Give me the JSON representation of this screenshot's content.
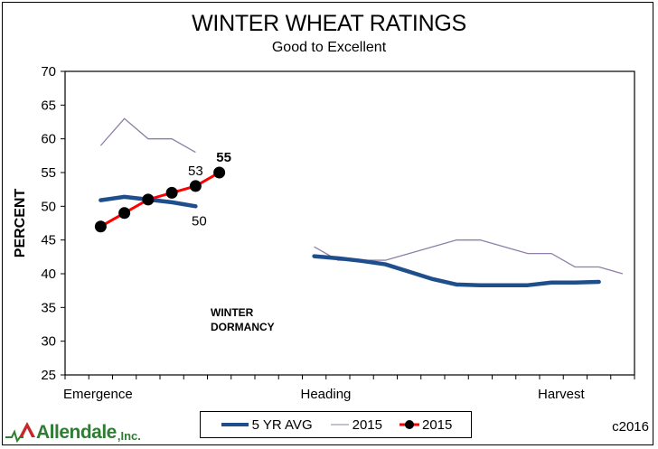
{
  "chart_data": {
    "type": "line",
    "title": "WINTER WHEAT RATINGS",
    "subtitle": "Good to Excellent",
    "xlabel": "",
    "ylabel": "PERCENT",
    "ylim": [
      25,
      70
    ],
    "yticks": [
      25,
      30,
      35,
      40,
      45,
      50,
      55,
      60,
      65,
      70
    ],
    "x_category_count": 24,
    "x_tick_labels": [
      {
        "label": "Emergence",
        "index": 0
      },
      {
        "label": "Heading",
        "index": 10
      },
      {
        "label": "Harvest",
        "index": 20
      }
    ],
    "grid": false,
    "legend_position": "bottom",
    "series": [
      {
        "name": "5 YR AVG",
        "color": "#1f4e8c",
        "style": "thick",
        "x": [
          1,
          2,
          3,
          4,
          5,
          10,
          11,
          12,
          13,
          14,
          15,
          16,
          17,
          18,
          19,
          20,
          21,
          22
        ],
        "values": [
          50.9,
          51.4,
          51.0,
          50.6,
          50.0,
          42.6,
          42.3,
          41.9,
          41.4,
          40.3,
          39.2,
          38.4,
          38.3,
          38.3,
          38.3,
          38.7,
          38.7,
          38.8
        ]
      },
      {
        "name": "2015",
        "color": "#8e7fa8",
        "style": "thin",
        "x": [
          1,
          2,
          3,
          4,
          5,
          10,
          11,
          12,
          13,
          14,
          15,
          16,
          17,
          18,
          19,
          20,
          21,
          22,
          23
        ],
        "values": [
          59,
          63,
          60,
          60,
          58,
          44,
          42,
          42,
          42,
          43,
          44,
          45,
          45,
          44,
          43,
          43,
          41,
          41,
          40
        ]
      },
      {
        "name": "2015",
        "color": "#ff0000",
        "marker_color": "#000000",
        "style": "markers",
        "x": [
          1,
          2,
          3,
          4,
          5,
          6
        ],
        "values": [
          47,
          49,
          51,
          52,
          53,
          55
        ]
      }
    ],
    "annotations": [
      {
        "text": "55",
        "bold": true,
        "series": 2,
        "point": 5
      },
      {
        "text": "53",
        "bold": false,
        "series": 2,
        "point": 4
      },
      {
        "text": "50",
        "bold": false,
        "series": 0,
        "point": 4
      },
      {
        "text": "WINTER",
        "bold": true
      },
      {
        "text": "DORMANCY",
        "bold": true
      }
    ]
  },
  "legend": {
    "items": [
      {
        "label": "5 YR AVG"
      },
      {
        "label": "2015"
      },
      {
        "label": "2015"
      }
    ]
  },
  "logo": {
    "name": "Allendale",
    "suffix": ",Inc."
  },
  "copyright": "c2016"
}
